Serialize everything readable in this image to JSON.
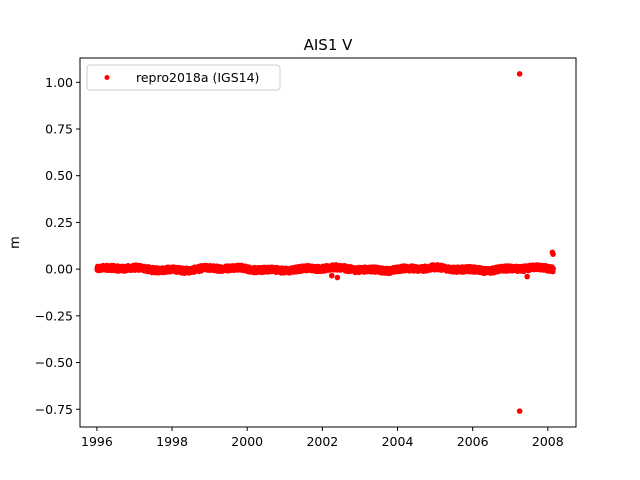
{
  "chart_data": {
    "type": "scatter",
    "title": "AIS1 V",
    "xlabel": "",
    "ylabel": "m",
    "xlim": [
      1995.55,
      2008.75
    ],
    "ylim": [
      -0.845,
      1.13
    ],
    "xticks": [
      1996,
      1998,
      2000,
      2002,
      2004,
      2006,
      2008
    ],
    "xtick_labels": [
      "1996",
      "1998",
      "2000",
      "2002",
      "2004",
      "2006",
      "2008"
    ],
    "yticks": [
      -0.75,
      -0.5,
      -0.25,
      0.0,
      0.25,
      0.5,
      0.75,
      1.0
    ],
    "ytick_labels": [
      "−0.75",
      "−0.50",
      "−0.25",
      "0.00",
      "0.25",
      "0.50",
      "0.75",
      "1.00"
    ],
    "grid": false,
    "legend_position": "top-left",
    "series": [
      {
        "name": "repro2018a (IGS14)",
        "color": "#ff0000",
        "marker": "circle",
        "x_range": [
          1996.0,
          2008.15
        ],
        "typical_y": 0.0,
        "spread": 0.02,
        "outliers": [
          {
            "x": 2007.25,
            "y": 1.045
          },
          {
            "x": 2007.25,
            "y": -0.76
          },
          {
            "x": 2008.12,
            "y": 0.09
          },
          {
            "x": 2008.14,
            "y": 0.08
          },
          {
            "x": 2007.45,
            "y": -0.04
          },
          {
            "x": 2002.4,
            "y": -0.045
          },
          {
            "x": 2002.25,
            "y": -0.035
          }
        ]
      }
    ]
  }
}
